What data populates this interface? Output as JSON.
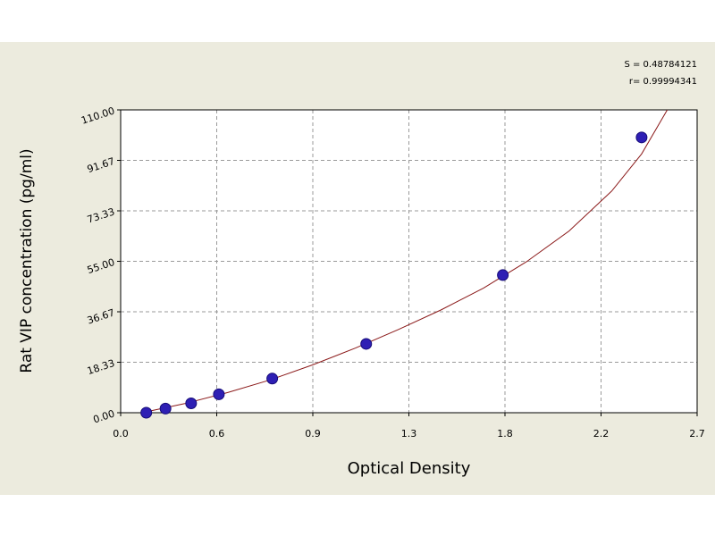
{
  "chart_data": {
    "type": "scatter",
    "xlabel": "Optical Density",
    "ylabel": "Rat VIP concentration (pg/ml)",
    "xlim": [
      0.0,
      2.7
    ],
    "ylim": [
      0.0,
      110.0
    ],
    "x_tick_labels": [
      "0.0",
      "0.6",
      "0.9",
      "1.3",
      "1.8",
      "2.2",
      "2.7"
    ],
    "y_tick_labels": [
      "0.00",
      "18.33",
      "36.67",
      "55.00",
      "73.33",
      "91.67",
      "110.00"
    ],
    "grid": true,
    "annotations": [
      "S = 0.48784121",
      "r= 0.99994341"
    ],
    "series": [
      {
        "points": [
          {
            "x": 0.12,
            "y": 0.0
          },
          {
            "x": 0.21,
            "y": 1.5
          },
          {
            "x": 0.33,
            "y": 3.4
          },
          {
            "x": 0.46,
            "y": 6.7
          },
          {
            "x": 0.71,
            "y": 12.4
          },
          {
            "x": 1.15,
            "y": 25.0
          },
          {
            "x": 1.79,
            "y": 50.0
          },
          {
            "x": 2.44,
            "y": 100.0
          }
        ]
      }
    ],
    "fit_curve": {
      "points": [
        {
          "x": 0.1,
          "y": 0.0
        },
        {
          "x": 0.3,
          "y": 3.3
        },
        {
          "x": 0.5,
          "y": 7.3
        },
        {
          "x": 0.7,
          "y": 11.9
        },
        {
          "x": 0.9,
          "y": 17.4
        },
        {
          "x": 1.1,
          "y": 23.5
        },
        {
          "x": 1.3,
          "y": 30.2
        },
        {
          "x": 1.5,
          "y": 37.3
        },
        {
          "x": 1.7,
          "y": 45.3
        },
        {
          "x": 1.9,
          "y": 54.8
        },
        {
          "x": 2.1,
          "y": 66.0
        },
        {
          "x": 2.3,
          "y": 80.5
        },
        {
          "x": 2.44,
          "y": 94.0
        },
        {
          "x": 2.56,
          "y": 110.0
        }
      ]
    },
    "colors": {
      "panel_bg": "#ecebde",
      "plot_bg": "#ffffff",
      "marker": "#2e1fb4",
      "marker_edge": "#160c78",
      "fit_line": "#8b1a1a",
      "grid": "#9a9a9a"
    }
  }
}
